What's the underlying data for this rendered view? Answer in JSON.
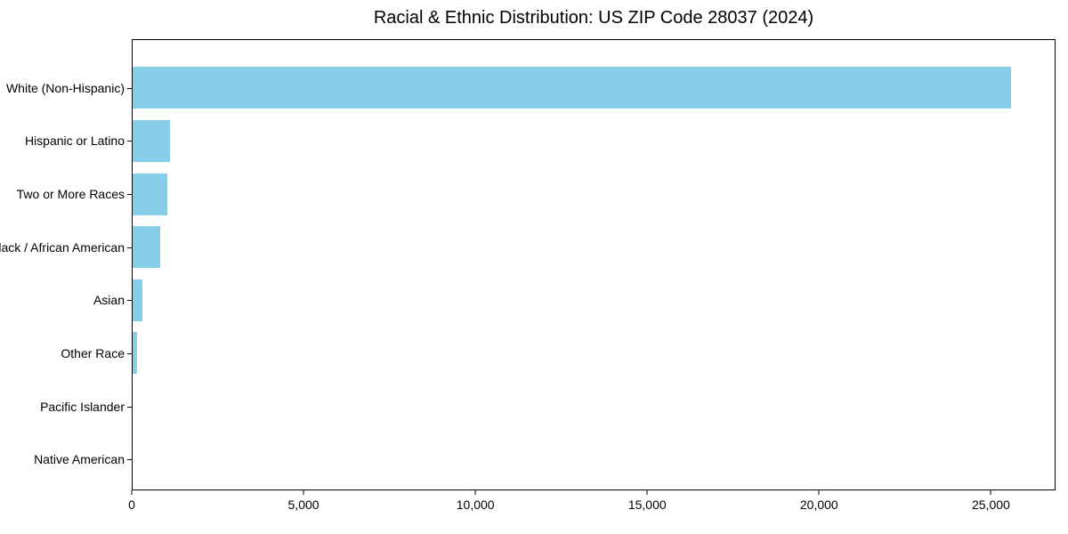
{
  "title": "Racial & Ethnic Distribution: US ZIP Code 28037 (2024)",
  "colors": {
    "bar": "#87CEEB",
    "axis": "#000000",
    "background": "#FFFFFF",
    "text": "#000000"
  },
  "chart_data": {
    "type": "bar",
    "orientation": "horizontal",
    "title": "Racial & Ethnic Distribution: US ZIP Code 28037 (2024)",
    "categories": [
      "White (Non-Hispanic)",
      "Hispanic or Latino",
      "Two or More Races",
      "Black / African American",
      "Asian",
      "Other Race",
      "Pacific Islander",
      "Native American"
    ],
    "values": [
      25600,
      1100,
      1000,
      800,
      280,
      130,
      0,
      0
    ],
    "bar_color": "#87CEEB",
    "xlabel": "",
    "ylabel": "",
    "xlim": [
      0,
      26880
    ],
    "xticks": [
      0,
      5000,
      10000,
      15000,
      20000,
      25000
    ],
    "xtick_labels": [
      "0",
      "5,000",
      "10,000",
      "15,000",
      "20,000",
      "25,000"
    ],
    "grid": false,
    "legend": null,
    "bar_height_fraction": 0.79
  }
}
